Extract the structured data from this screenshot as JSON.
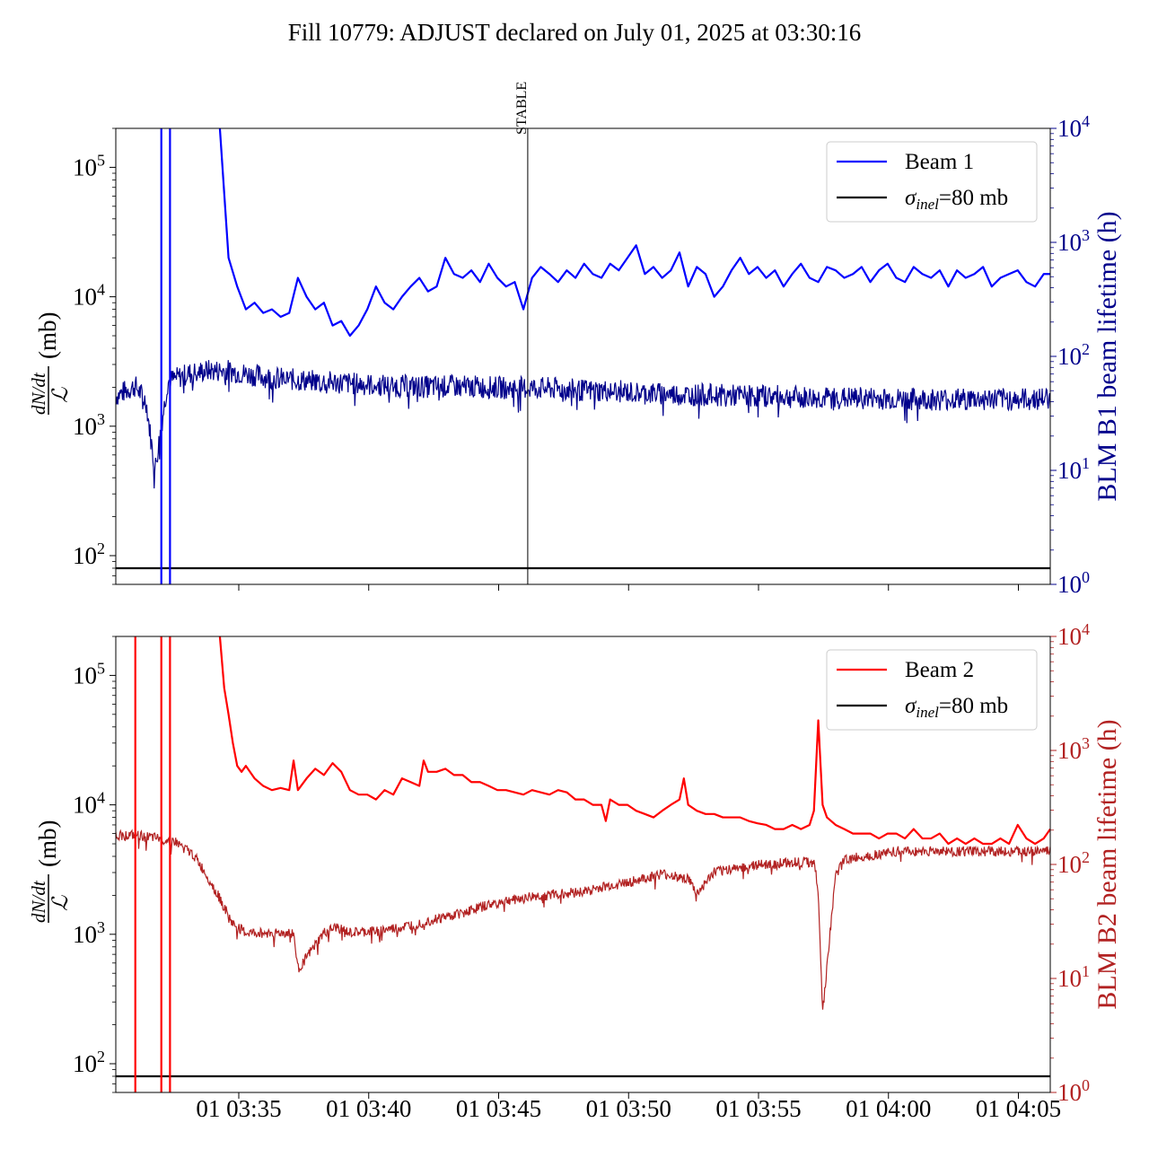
{
  "title": "Fill 10779: ADJUST declared on July 01, 2025 at 03:30:16",
  "colors": {
    "beam1": "#0000ff",
    "beam1_blm": "#00008b",
    "beam2": "#ff0000",
    "beam2_blm": "#b22222",
    "reference": "#000000"
  },
  "chart_data": [
    {
      "type": "line",
      "panel": "top",
      "ylabel_html": "dN/dt / ℒ (mb)",
      "ylabel_parts": {
        "numerator": "dN/dt",
        "denominator": "ℒ",
        "unit": "(mb)"
      },
      "y_scale": "log",
      "ylim": [
        60,
        200000
      ],
      "y_ticks": [
        {
          "v": 100,
          "label": "10",
          "exp": "2"
        },
        {
          "v": 1000,
          "label": "10",
          "exp": "3"
        },
        {
          "v": 10000,
          "label": "10",
          "exp": "4"
        },
        {
          "v": 100000,
          "label": "10",
          "exp": "5"
        }
      ],
      "y2label": "BLM B1 beam lifetime (h)",
      "y2_scale": "log",
      "y2lim": [
        1,
        10000
      ],
      "y2_ticks": [
        {
          "v": 1,
          "label": "10",
          "exp": "0"
        },
        {
          "v": 10,
          "label": "10",
          "exp": "1"
        },
        {
          "v": 100,
          "label": "10",
          "exp": "2"
        },
        {
          "v": 1000,
          "label": "10",
          "exp": "3"
        },
        {
          "v": 10000,
          "label": "10",
          "exp": "4"
        }
      ],
      "xlim": [
        "03:30:16",
        "04:06:11"
      ],
      "legend": {
        "location": "upper right",
        "entries": [
          {
            "name": "Beam 1"
          },
          {
            "name": "σinel=80 mb",
            "sym": "σ",
            "sub": "inel",
            "rest": "=80 mb"
          }
        ]
      },
      "annotations": [
        {
          "x": "03:46:06",
          "text": "STABLE"
        }
      ],
      "vlines": [
        "03:32:01",
        "03:32:21"
      ],
      "hline": 80,
      "series": [
        {
          "name": "Beam 1",
          "axis": "left",
          "width": 2.2,
          "x": [
            "03:34:16",
            "03:34:36",
            "03:34:56",
            "03:35:16",
            "03:35:36",
            "03:35:56",
            "03:36:16",
            "03:36:36",
            "03:36:56",
            "03:37:16",
            "03:37:36",
            "03:37:56",
            "03:38:16",
            "03:38:36",
            "03:38:56",
            "03:39:16",
            "03:39:36",
            "03:39:56",
            "03:40:16",
            "03:40:36",
            "03:40:56",
            "03:41:16",
            "03:41:36",
            "03:41:56",
            "03:42:16",
            "03:42:36",
            "03:42:56",
            "03:43:16",
            "03:43:36",
            "03:43:56",
            "03:44:16",
            "03:44:36",
            "03:44:56",
            "03:45:16",
            "03:45:36",
            "03:45:56",
            "03:46:16",
            "03:46:36",
            "03:46:56",
            "03:47:16",
            "03:47:36",
            "03:47:56",
            "03:48:16",
            "03:48:36",
            "03:48:56",
            "03:49:16",
            "03:49:36",
            "03:49:56",
            "03:50:16",
            "03:50:36",
            "03:50:56",
            "03:51:16",
            "03:51:36",
            "03:51:56",
            "03:52:16",
            "03:52:36",
            "03:52:56",
            "03:53:16",
            "03:53:36",
            "03:53:56",
            "03:54:16",
            "03:54:36",
            "03:54:56",
            "03:55:16",
            "03:55:36",
            "03:55:56",
            "03:56:16",
            "03:56:36",
            "03:56:56",
            "03:57:16",
            "03:57:36",
            "03:57:56",
            "03:58:16",
            "03:58:36",
            "03:58:56",
            "03:59:16",
            "03:59:36",
            "03:59:56",
            "04:00:16",
            "04:00:36",
            "04:00:56",
            "04:01:16",
            "04:01:36",
            "04:01:56",
            "04:02:16",
            "04:02:36",
            "04:02:56",
            "04:03:16",
            "04:03:36",
            "04:03:56",
            "04:04:16",
            "04:04:36",
            "04:04:56",
            "04:05:16",
            "04:05:36",
            "04:05:56",
            "04:06:11"
          ],
          "y": [
            200000,
            20000,
            12000,
            8000,
            9000,
            7500,
            8000,
            7000,
            7500,
            14000,
            10000,
            8000,
            9000,
            6000,
            6500,
            5000,
            6000,
            8000,
            12000,
            9000,
            8000,
            10000,
            12000,
            14000,
            11000,
            12000,
            20000,
            15000,
            14000,
            16000,
            13000,
            18000,
            14000,
            12000,
            13000,
            8000,
            14000,
            17000,
            15000,
            13000,
            16000,
            14000,
            18000,
            15000,
            14000,
            18000,
            16000,
            20000,
            25000,
            15000,
            17000,
            14000,
            16000,
            22000,
            12000,
            17000,
            15000,
            10000,
            12000,
            16000,
            20000,
            15000,
            17000,
            14000,
            16000,
            12000,
            15000,
            18000,
            14000,
            13000,
            17000,
            16000,
            14000,
            15000,
            17000,
            13000,
            16000,
            18000,
            14000,
            13000,
            17000,
            15000,
            14000,
            16000,
            12000,
            16000,
            14000,
            15000,
            17000,
            12000,
            14000,
            15000,
            16000,
            13000,
            12000,
            15000,
            15000
          ]
        },
        {
          "name": "BLM B1",
          "axis": "right",
          "width": 1.2,
          "noise": true,
          "x": [
            "03:30:16",
            "03:31:01",
            "03:31:26",
            "03:31:46",
            "03:32:16",
            "03:33:01",
            "03:33:46",
            "03:34:36",
            "03:35:16",
            "03:36:16",
            "03:37:16",
            "03:38:16",
            "03:39:16",
            "03:40:16",
            "03:41:16",
            "03:42:16",
            "03:43:16",
            "03:44:16",
            "03:45:16",
            "03:46:16",
            "03:47:16",
            "03:48:16",
            "03:49:16",
            "03:50:16",
            "03:51:16",
            "03:52:16",
            "03:53:16",
            "03:54:16",
            "03:55:16",
            "03:56:16",
            "03:57:16",
            "03:58:16",
            "03:59:16",
            "04:00:16",
            "04:01:16",
            "04:02:16",
            "04:03:16",
            "04:04:16",
            "04:05:16",
            "04:06:11"
          ],
          "y": [
            45,
            55,
            40,
            10,
            60,
            70,
            75,
            75,
            70,
            65,
            62,
            60,
            58,
            56,
            55,
            54,
            55,
            54,
            53,
            53,
            52,
            50,
            50,
            48,
            47,
            46,
            46,
            45,
            45,
            44,
            43,
            43,
            43,
            42,
            42,
            42,
            42,
            42,
            42,
            43
          ]
        }
      ]
    },
    {
      "type": "line",
      "panel": "bottom",
      "ylabel_html": "dN/dt / ℒ (mb)",
      "ylabel_parts": {
        "numerator": "dN/dt",
        "denominator": "ℒ",
        "unit": "(mb)"
      },
      "y_scale": "log",
      "ylim": [
        60,
        200000
      ],
      "y_ticks": [
        {
          "v": 100,
          "label": "10",
          "exp": "2"
        },
        {
          "v": 1000,
          "label": "10",
          "exp": "3"
        },
        {
          "v": 10000,
          "label": "10",
          "exp": "4"
        },
        {
          "v": 100000,
          "label": "10",
          "exp": "5"
        }
      ],
      "y2label": "BLM B2 beam lifetime (h)",
      "y2_scale": "log",
      "y2lim": [
        1,
        10000
      ],
      "y2_ticks": [
        {
          "v": 1,
          "label": "10",
          "exp": "0"
        },
        {
          "v": 10,
          "label": "10",
          "exp": "1"
        },
        {
          "v": 100,
          "label": "10",
          "exp": "2"
        },
        {
          "v": 1000,
          "label": "10",
          "exp": "3"
        },
        {
          "v": 10000,
          "label": "10",
          "exp": "4"
        }
      ],
      "xlim": [
        "03:30:16",
        "04:06:11"
      ],
      "x_ticks": [
        "01 03:35",
        "01 03:40",
        "01 03:45",
        "01 03:50",
        "01 03:55",
        "01 04:00",
        "01 04:05"
      ],
      "legend": {
        "location": "upper right",
        "entries": [
          {
            "name": "Beam 2"
          },
          {
            "name": "σinel=80 mb",
            "sym": "σ",
            "sub": "inel",
            "rest": "=80 mb"
          }
        ]
      },
      "vlines": [
        "03:31:01",
        "03:32:01",
        "03:32:21"
      ],
      "hline": 80,
      "series": [
        {
          "name": "Beam 2",
          "axis": "left",
          "width": 2.2,
          "x": [
            "03:34:16",
            "03:34:26",
            "03:34:36",
            "03:34:46",
            "03:34:56",
            "03:35:06",
            "03:35:16",
            "03:35:36",
            "03:35:56",
            "03:36:16",
            "03:36:36",
            "03:36:56",
            "03:37:06",
            "03:37:16",
            "03:37:36",
            "03:37:56",
            "03:38:16",
            "03:38:36",
            "03:38:56",
            "03:39:16",
            "03:39:36",
            "03:39:56",
            "03:40:16",
            "03:40:36",
            "03:40:56",
            "03:41:16",
            "03:41:36",
            "03:41:56",
            "03:42:06",
            "03:42:16",
            "03:42:36",
            "03:42:56",
            "03:43:16",
            "03:43:36",
            "03:43:56",
            "03:44:16",
            "03:44:36",
            "03:44:56",
            "03:45:16",
            "03:45:36",
            "03:45:56",
            "03:46:16",
            "03:46:36",
            "03:46:56",
            "03:47:16",
            "03:47:36",
            "03:47:56",
            "03:48:16",
            "03:48:36",
            "03:48:56",
            "03:49:06",
            "03:49:16",
            "03:49:36",
            "03:49:56",
            "03:50:16",
            "03:50:36",
            "03:50:56",
            "03:51:16",
            "03:51:36",
            "03:51:56",
            "03:52:06",
            "03:52:16",
            "03:52:36",
            "03:52:56",
            "03:53:16",
            "03:53:36",
            "03:53:56",
            "03:54:16",
            "03:54:36",
            "03:54:56",
            "03:55:16",
            "03:55:36",
            "03:55:56",
            "03:56:16",
            "03:56:36",
            "03:56:56",
            "03:57:06",
            "03:57:16",
            "03:57:26",
            "03:57:36",
            "03:57:56",
            "03:58:16",
            "03:58:36",
            "03:58:56",
            "03:59:16",
            "03:59:36",
            "03:59:56",
            "04:00:16",
            "04:00:36",
            "04:00:56",
            "04:01:16",
            "04:01:36",
            "04:01:56",
            "04:02:16",
            "04:02:36",
            "04:02:56",
            "04:03:16",
            "04:03:36",
            "04:03:56",
            "04:04:16",
            "04:04:36",
            "04:04:56",
            "04:05:16",
            "04:05:36",
            "04:05:56",
            "04:06:11"
          ],
          "y": [
            200000,
            80000,
            50000,
            30000,
            20000,
            18000,
            20000,
            16000,
            14000,
            13000,
            13500,
            13000,
            22000,
            13000,
            16000,
            19000,
            17000,
            21000,
            18000,
            13000,
            12000,
            12000,
            11000,
            13000,
            12000,
            16000,
            15000,
            14000,
            22000,
            18000,
            18000,
            19000,
            17000,
            17000,
            15000,
            15000,
            14000,
            13000,
            13000,
            12500,
            12000,
            13000,
            12500,
            12000,
            13000,
            12500,
            11000,
            11000,
            10000,
            10000,
            7500,
            11000,
            10000,
            10000,
            9000,
            8500,
            8000,
            9000,
            10000,
            11000,
            16000,
            10000,
            9000,
            8500,
            8500,
            8000,
            8000,
            8000,
            7500,
            7200,
            7000,
            6500,
            6500,
            7000,
            6500,
            7000,
            9000,
            45000,
            10000,
            8000,
            7000,
            6500,
            6000,
            6000,
            6000,
            5500,
            6000,
            6000,
            5500,
            6500,
            5500,
            5500,
            6000,
            5000,
            5500,
            5000,
            5500,
            5000,
            5000,
            5500,
            5000,
            7000,
            5500,
            5000,
            5500,
            6500
          ]
        },
        {
          "name": "BLM B2",
          "axis": "right",
          "width": 1.2,
          "noise": true,
          "x": [
            "03:30:16",
            "03:31:01",
            "03:31:46",
            "03:32:31",
            "03:33:16",
            "03:33:46",
            "03:34:16",
            "03:34:46",
            "03:35:16",
            "03:36:16",
            "03:37:06",
            "03:37:16",
            "03:38:16",
            "03:38:46",
            "03:39:16",
            "03:40:16",
            "03:41:16",
            "03:42:16",
            "03:43:16",
            "03:44:16",
            "03:45:16",
            "03:46:16",
            "03:47:16",
            "03:48:16",
            "03:49:16",
            "03:50:16",
            "03:51:16",
            "03:52:16",
            "03:52:36",
            "03:53:16",
            "03:54:16",
            "03:55:16",
            "03:56:16",
            "03:57:06",
            "03:57:16",
            "03:57:26",
            "03:57:56",
            "03:58:16",
            "03:59:16",
            "04:00:16",
            "04:01:16",
            "04:02:16",
            "04:03:16",
            "04:04:16",
            "04:05:16",
            "04:06:11"
          ],
          "y": [
            180,
            180,
            170,
            160,
            120,
            80,
            50,
            30,
            25,
            25,
            25,
            12,
            25,
            28,
            25,
            26,
            28,
            32,
            36,
            42,
            48,
            52,
            55,
            58,
            65,
            72,
            82,
            75,
            55,
            85,
            95,
            100,
            105,
            105,
            60,
            5,
            80,
            110,
            120,
            130,
            130,
            130,
            130,
            130,
            130,
            130
          ]
        }
      ]
    }
  ]
}
